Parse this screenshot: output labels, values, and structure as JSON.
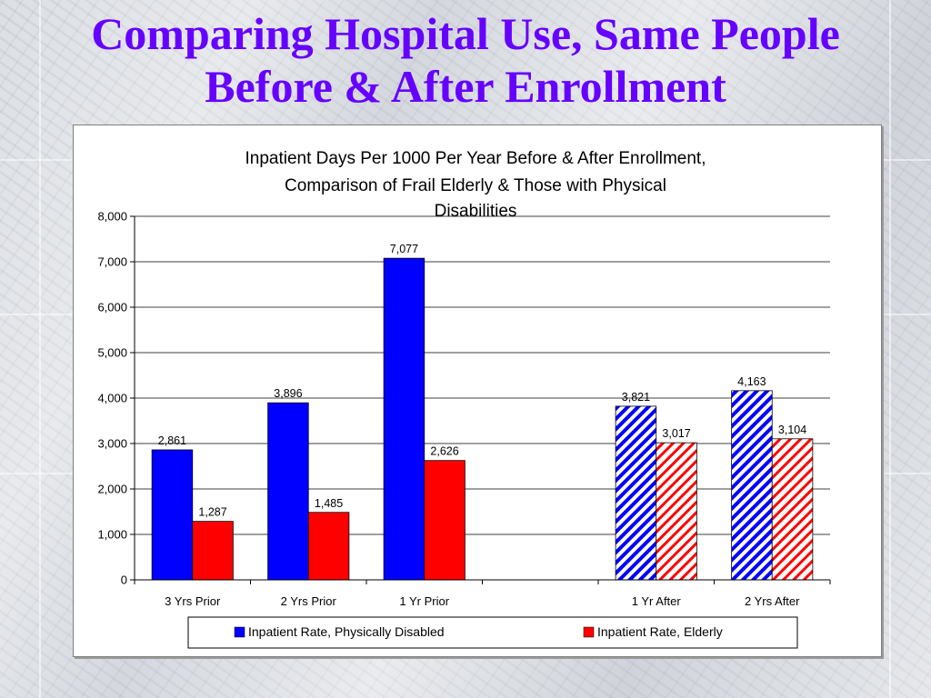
{
  "slide": {
    "title_line1": "Comparing Hospital Use, Same People",
    "title_line2": "Before & After Enrollment"
  },
  "colors": {
    "title": "#6600ff",
    "physically_disabled": "#0000ff",
    "elderly": "#ff0000"
  },
  "chart_data": {
    "type": "bar",
    "title_lines": [
      "Inpatient Days Per 1000 Per Year Before & After Enrollment,",
      "Comparison of Frail Elderly & Those with Physical",
      "Disabilities"
    ],
    "categories": [
      "3 Yrs Prior",
      "2 Yrs Prior",
      "1 Yr Prior",
      "",
      "1 Yr After",
      "2 Yrs After"
    ],
    "hatched_categories": [
      "1 Yr After",
      "2 Yrs After"
    ],
    "series": [
      {
        "name": "Inpatient Rate, Physically Disabled",
        "color": "#0000ff",
        "values": [
          2861,
          3896,
          7077,
          null,
          3821,
          4163
        ],
        "labels": [
          "2,861",
          "3,896",
          "7,077",
          "",
          "3,821",
          "4,163"
        ]
      },
      {
        "name": "Inpatient Rate, Elderly",
        "color": "#ff0000",
        "values": [
          1287,
          1485,
          2626,
          null,
          3017,
          3104
        ],
        "labels": [
          "1,287",
          "1,485",
          "2,626",
          "",
          "3,017",
          "3,104"
        ]
      }
    ],
    "ylim": [
      0,
      8000
    ],
    "yticks": [
      0,
      1000,
      2000,
      3000,
      4000,
      5000,
      6000,
      7000,
      8000
    ],
    "ytick_labels": [
      "0",
      "1,000",
      "2,000",
      "3,000",
      "4,000",
      "5,000",
      "6,000",
      "7,000",
      "8,000"
    ],
    "grid": true,
    "legend_position": "bottom"
  }
}
